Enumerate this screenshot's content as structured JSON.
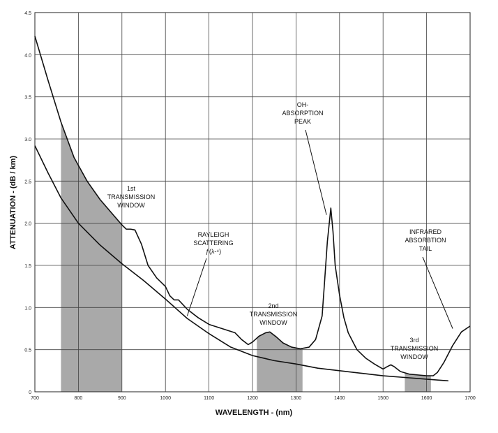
{
  "chart_data": {
    "type": "line",
    "xlabel": "WAVELENGTH - (nm)",
    "ylabel": "ATTENUATION - (dB / km)",
    "xlim": [
      700,
      1700
    ],
    "ylim": [
      0,
      4.5
    ],
    "x_ticks": [
      "700",
      "800",
      "900",
      "1000",
      "1100",
      "1200",
      "1300",
      "1400",
      "1500",
      "1600",
      "1700"
    ],
    "y_ticks": [
      "4.5",
      "4.0",
      "3.5",
      "3.0",
      "2.5",
      "2.0",
      "1.5",
      "1.0",
      "0.5",
      "0"
    ],
    "grid": true,
    "series": [
      {
        "x": [
          700,
          730,
          760,
          800,
          850,
          900,
          950,
          1000,
          1050,
          1100,
          1150,
          1200,
          1250,
          1300,
          1350,
          1400,
          1450,
          1500,
          1550,
          1600,
          1650
        ],
        "y": [
          2.92,
          2.6,
          2.3,
          2.0,
          1.74,
          1.52,
          1.32,
          1.1,
          0.87,
          0.69,
          0.53,
          0.43,
          0.37,
          0.33,
          0.28,
          0.25,
          0.22,
          0.19,
          0.17,
          0.15,
          0.13
        ]
      },
      {
        "x": [
          700,
          730,
          760,
          790,
          820,
          850,
          880,
          900,
          910,
          920,
          930,
          945,
          960,
          980,
          1000,
          1010,
          1020,
          1030,
          1050,
          1075,
          1100,
          1130,
          1160,
          1175,
          1190,
          1200,
          1215,
          1230,
          1240,
          1255,
          1270,
          1290,
          1310,
          1330,
          1345,
          1360,
          1365,
          1372,
          1377,
          1380,
          1385,
          1390,
          1400,
          1410,
          1420,
          1440,
          1460,
          1480,
          1500,
          1510,
          1518,
          1525,
          1540,
          1560,
          1580,
          1600,
          1615,
          1625,
          1640,
          1660,
          1680,
          1700
        ],
        "y": [
          4.22,
          3.7,
          3.2,
          2.78,
          2.5,
          2.28,
          2.1,
          1.98,
          1.93,
          1.93,
          1.92,
          1.75,
          1.5,
          1.35,
          1.25,
          1.14,
          1.09,
          1.09,
          0.98,
          0.88,
          0.8,
          0.75,
          0.7,
          0.62,
          0.56,
          0.59,
          0.66,
          0.7,
          0.71,
          0.65,
          0.58,
          0.53,
          0.51,
          0.53,
          0.62,
          0.9,
          1.26,
          1.78,
          2.03,
          2.18,
          1.9,
          1.5,
          1.15,
          0.88,
          0.7,
          0.5,
          0.4,
          0.33,
          0.27,
          0.3,
          0.32,
          0.3,
          0.24,
          0.21,
          0.2,
          0.19,
          0.19,
          0.23,
          0.35,
          0.55,
          0.71,
          0.78
        ]
      }
    ],
    "shaded_regions": [
      {
        "x": [
          760,
          900
        ],
        "label": "1st\nTRANSMISSION\nWINDOW"
      },
      {
        "x": [
          1210,
          1315
        ],
        "label": "2nd\nTRANSMISSION\nWINDOW"
      },
      {
        "x": [
          1550,
          1610
        ],
        "label": "3rd\nTRANSMISSION\nWINDOW"
      }
    ],
    "annotations": [
      {
        "text": "1st",
        "lines": [
          "1st",
          "TRANSMISSION",
          "WINDOW"
        ]
      },
      {
        "lines": [
          "RAYLEIGH",
          "SCATTERING",
          "ƒ(λ-⁴)"
        ],
        "x": 1050,
        "y": 0.9
      },
      {
        "lines": [
          "OH-",
          "ABSORPTION",
          "PEAK"
        ],
        "x": 1370,
        "y": 2.1
      },
      {
        "lines": [
          "2nd",
          "TRANSMISSION",
          "WINDOW"
        ]
      },
      {
        "lines": [
          "INFRARED",
          "ABSORBTION",
          "TAIL"
        ],
        "x": 1660,
        "y": 0.75
      },
      {
        "lines": [
          "3rd",
          "TRANSMISSION",
          "WINDOW"
        ]
      }
    ]
  }
}
